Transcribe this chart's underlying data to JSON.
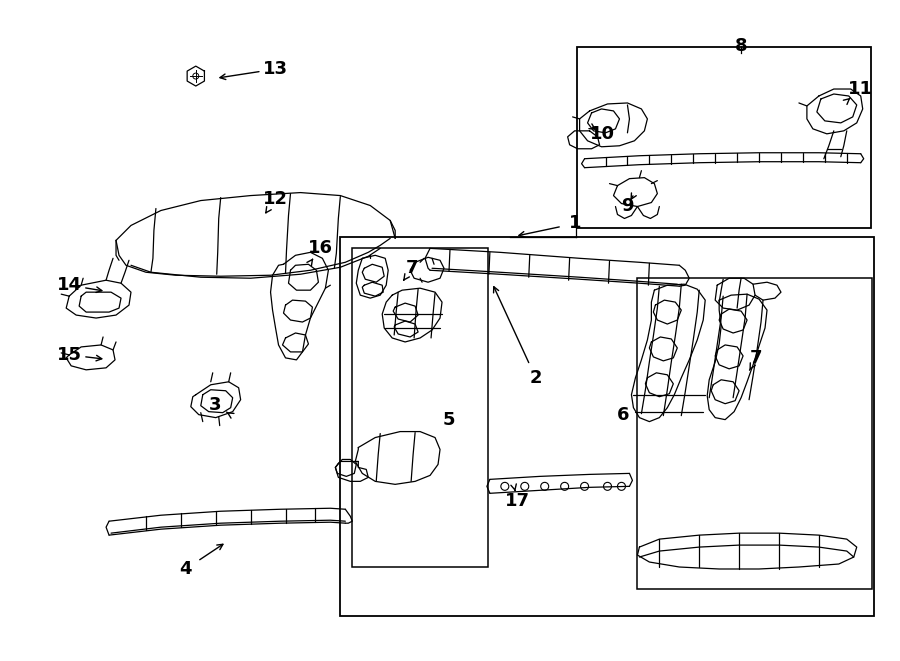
{
  "figsize": [
    9.0,
    6.61
  ],
  "dpi": 100,
  "bg_color": "#ffffff",
  "line_color": "#000000",
  "lw": 0.9
}
